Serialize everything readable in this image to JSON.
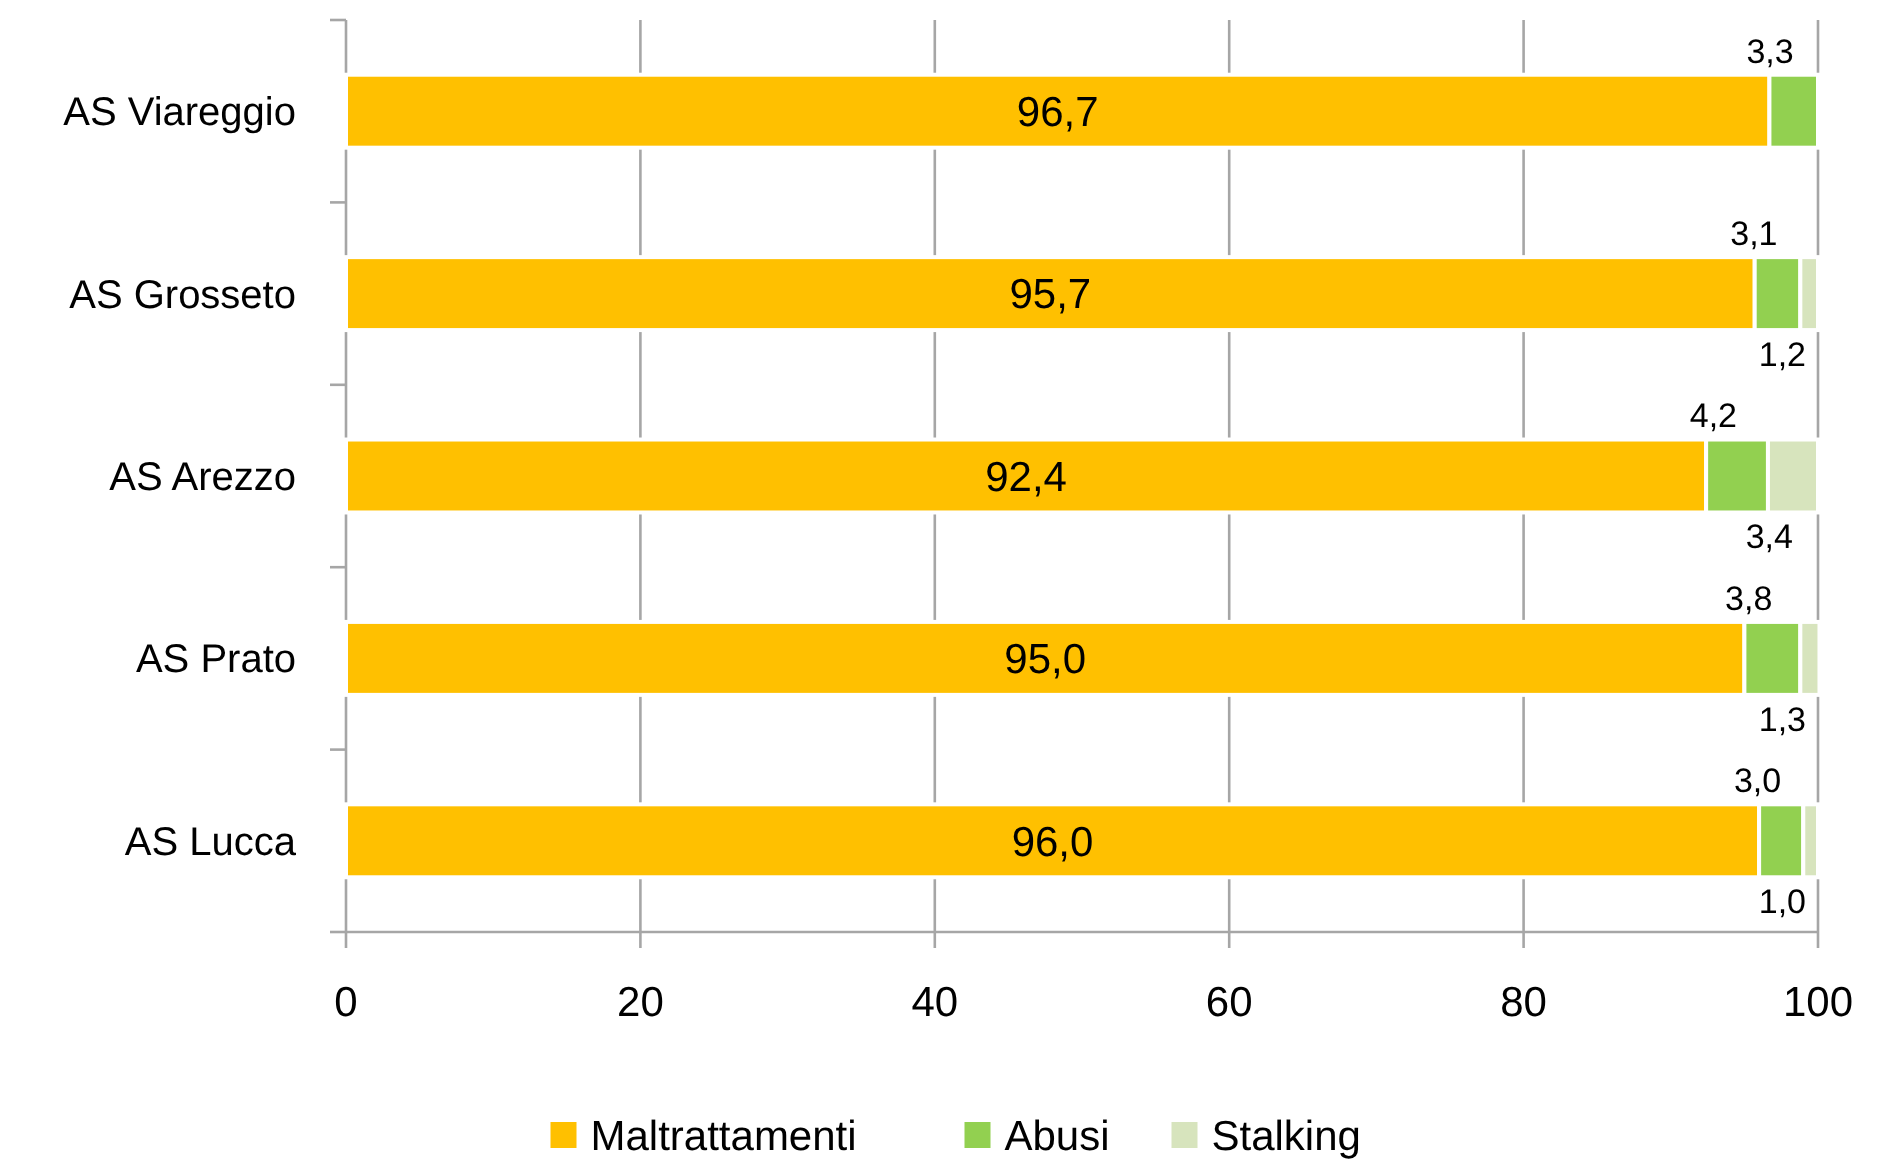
{
  "chart_data": {
    "type": "bar",
    "orientation": "horizontal",
    "stacked": true,
    "categories": [
      "AS Viareggio",
      "AS Grosseto",
      "AS Arezzo",
      "AS Prato",
      "AS Lucca"
    ],
    "series": [
      {
        "name": "Maltrattamenti",
        "color": "#ffc000",
        "values": [
          96.7,
          95.7,
          92.4,
          95.0,
          96.0
        ],
        "value_labels": [
          "96,7",
          "95,7",
          "92,4",
          "95,0",
          "96,0"
        ]
      },
      {
        "name": "Abusi",
        "color": "#92d050",
        "values": [
          3.3,
          3.1,
          4.2,
          3.8,
          3.0
        ],
        "value_labels": [
          "3,3",
          "3,1",
          "4,2",
          "3,8",
          "3,0"
        ]
      },
      {
        "name": "Stalking",
        "color": "#d7e4bd",
        "values": [
          null,
          1.2,
          3.4,
          1.3,
          1.0
        ],
        "value_labels": [
          null,
          "1,2",
          "3,4",
          "1,3",
          "1,0"
        ]
      }
    ],
    "xlim": [
      0,
      100
    ],
    "xticks": [
      0,
      20,
      40,
      60,
      80,
      100
    ],
    "grid": "x",
    "legend": "bottom"
  }
}
